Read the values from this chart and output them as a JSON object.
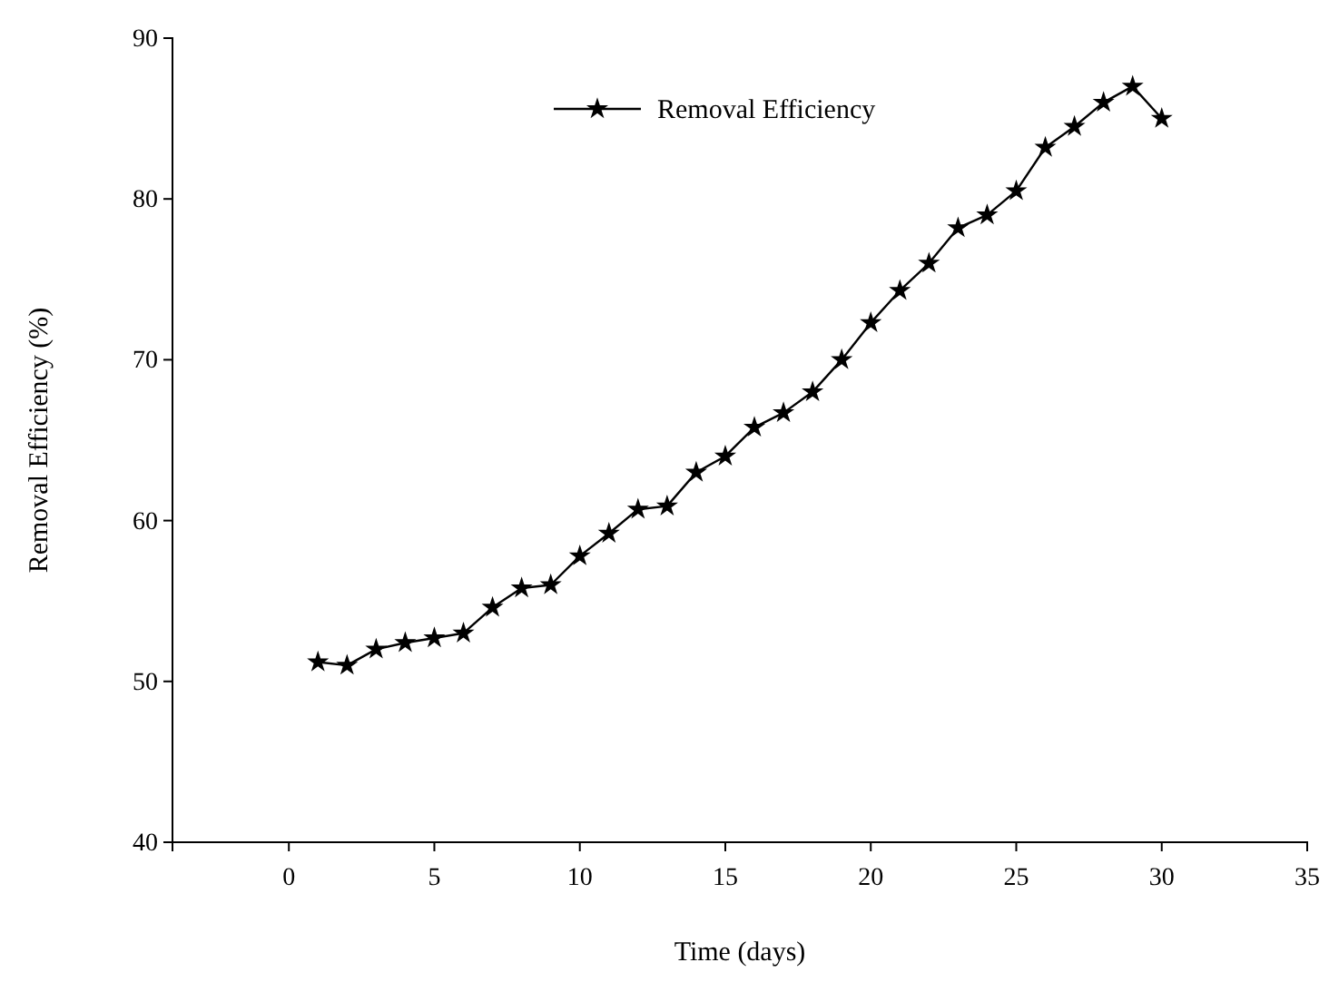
{
  "chart_data": {
    "type": "line",
    "xlabel": "Time (days)",
    "ylabel": "Removal Efficiency (%)",
    "x": [
      1,
      2,
      3,
      4,
      5,
      6,
      7,
      8,
      9,
      10,
      11,
      12,
      13,
      14,
      15,
      16,
      17,
      18,
      19,
      20,
      21,
      22,
      23,
      24,
      25,
      26,
      27,
      28,
      29,
      30
    ],
    "series": [
      {
        "name": "Removal Efficiency",
        "color": "#000000",
        "values": [
          51.2,
          51.0,
          52.0,
          52.4,
          52.7,
          53.0,
          54.6,
          55.8,
          56.0,
          57.8,
          59.2,
          60.7,
          60.9,
          63.0,
          64.0,
          65.8,
          66.7,
          68.0,
          70.0,
          72.3,
          74.3,
          76.0,
          78.2,
          79.0,
          80.5,
          83.2,
          84.5,
          86.0,
          87.0,
          85.0
        ]
      }
    ],
    "xlim": [
      -4,
      35
    ],
    "xticks": [
      0,
      5,
      10,
      15,
      20,
      25,
      30,
      35
    ],
    "ylim": [
      40,
      90
    ],
    "yticks": [
      40,
      50,
      60,
      70,
      80,
      90
    ],
    "marker": "star",
    "line_style": "solid",
    "legend": "top",
    "grid": false
  }
}
